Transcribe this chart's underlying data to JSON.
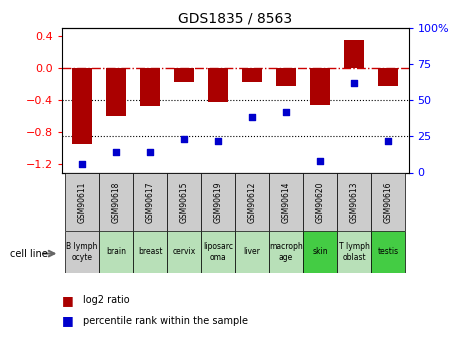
{
  "title": "GDS1835 / 8563",
  "samples": [
    "GSM90611",
    "GSM90618",
    "GSM90617",
    "GSM90615",
    "GSM90619",
    "GSM90612",
    "GSM90614",
    "GSM90620",
    "GSM90613",
    "GSM90616"
  ],
  "cell_lines": [
    "B lymph\nocyte",
    "brain",
    "breast",
    "cervix",
    "liposarc\noma",
    "liver",
    "macroph\nage",
    "skin",
    "T lymph\noblast",
    "testis"
  ],
  "cell_line_colors": [
    "#cccccc",
    "#b8e0b8",
    "#b8e0b8",
    "#b8e0b8",
    "#b8e0b8",
    "#b8e0b8",
    "#b8e0b8",
    "#44cc44",
    "#b8e0b8",
    "#44cc44"
  ],
  "gsm_box_color": "#cccccc",
  "log2_ratio": [
    -0.95,
    -0.6,
    -0.48,
    -0.18,
    -0.43,
    -0.17,
    -0.22,
    -0.46,
    0.35,
    -0.22
  ],
  "percentile_rank": [
    6,
    14,
    14,
    23,
    22,
    38,
    42,
    8,
    62,
    22
  ],
  "bar_color": "#aa0000",
  "dot_color": "#0000cc",
  "dashed_line_color": "#cc0000",
  "ylim_left": [
    -1.3,
    0.5
  ],
  "ylim_right": [
    0,
    100
  ],
  "left_ticks": [
    -1.2,
    -0.8,
    -0.4,
    0,
    0.4
  ],
  "right_ticks": [
    0,
    25,
    50,
    75,
    100
  ],
  "right_tick_labels": [
    "0",
    "25",
    "50",
    "75",
    "100%"
  ]
}
